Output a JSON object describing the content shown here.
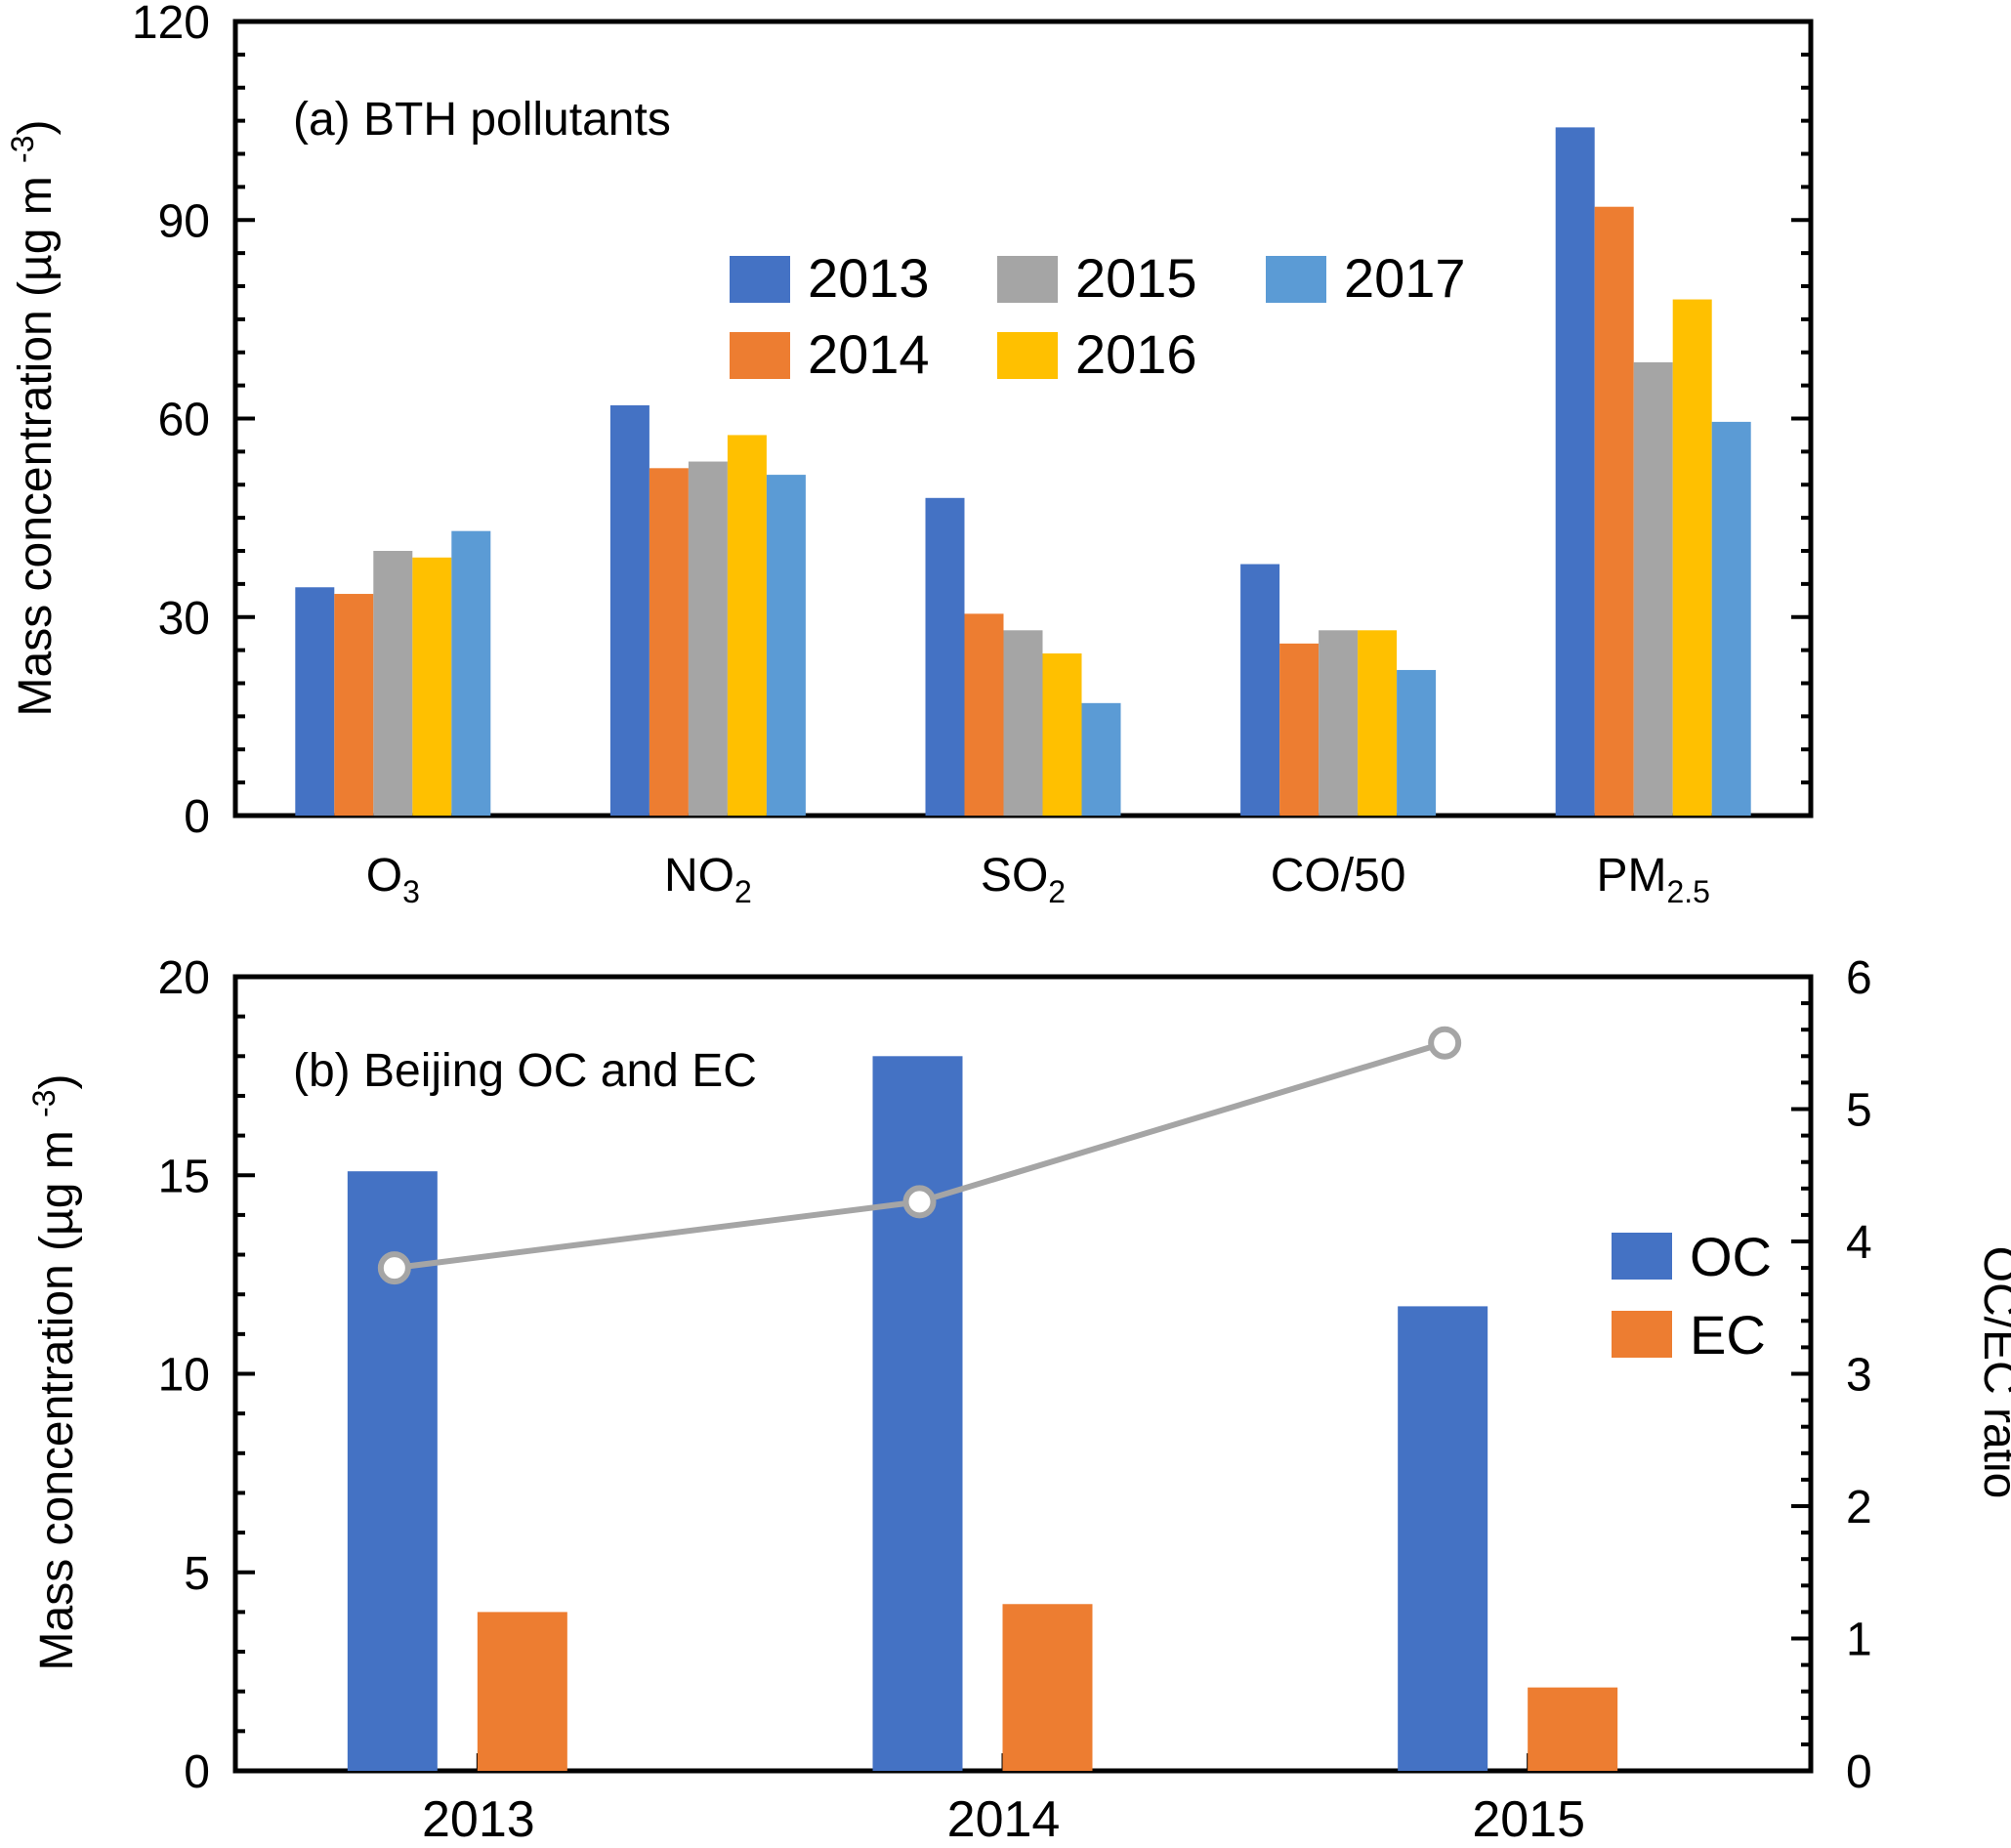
{
  "chart_data": [
    {
      "type": "bar",
      "title": "(a) BTH pollutants",
      "xlabel": "",
      "ylabel": "Mass concentration (µg m-3)",
      "ylim": [
        0,
        120
      ],
      "yticks": [
        0,
        30,
        60,
        90,
        120
      ],
      "categories": [
        {
          "base": "O",
          "sub": "3"
        },
        {
          "base": "NO",
          "sub": "2"
        },
        {
          "base": "SO",
          "sub": "2"
        },
        {
          "base": "CO/50",
          "sub": ""
        },
        {
          "base": "PM",
          "sub": "2.5"
        }
      ],
      "series": [
        {
          "name": "2013",
          "color": "#4472C4",
          "values": [
            34.5,
            62,
            48,
            38,
            104
          ]
        },
        {
          "name": "2014",
          "color": "#ED7D31",
          "values": [
            33.5,
            52.5,
            30.5,
            26,
            92
          ]
        },
        {
          "name": "2015",
          "color": "#A5A5A5",
          "values": [
            40,
            53.5,
            28,
            28,
            68.5
          ]
        },
        {
          "name": "2016",
          "color": "#FFC000",
          "values": [
            39,
            57.5,
            24.5,
            28,
            78
          ]
        },
        {
          "name": "2017",
          "color": "#5B9BD5",
          "values": [
            43,
            51.5,
            17,
            22,
            59.5
          ]
        }
      ],
      "legend": "upper-center, three columns",
      "grid": false
    },
    {
      "type": "bar+line",
      "title": "(b) Beijing OC and EC",
      "xlabel": "",
      "ylabel": "Mass concentration (µg m-3)",
      "ylabel_right": "OC/EC ratio",
      "ylim": [
        0,
        20
      ],
      "yticks": [
        0,
        5,
        10,
        15,
        20
      ],
      "ylim_right": [
        0,
        6
      ],
      "yticks_right": [
        0,
        1,
        2,
        3,
        4,
        5,
        6
      ],
      "categories": [
        "2013",
        "2014",
        "2015"
      ],
      "series": [
        {
          "name": "OC",
          "color": "#4472C4",
          "values": [
            15.1,
            18.0,
            11.7
          ]
        },
        {
          "name": "EC",
          "color": "#ED7D31",
          "values": [
            4.0,
            4.2,
            2.1
          ]
        }
      ],
      "line": {
        "color": "#A5A5A5",
        "axis": "right",
        "values": [
          3.8,
          4.3,
          5.5
        ]
      },
      "legend": "right",
      "grid": false
    }
  ]
}
